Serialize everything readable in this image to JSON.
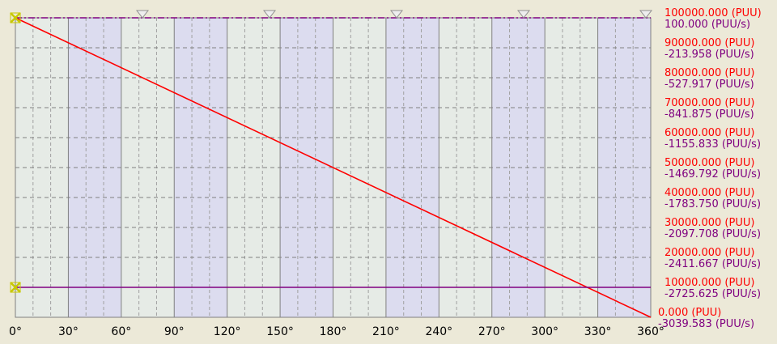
{
  "chart_data": {
    "type": "line",
    "title": "",
    "xlabel": "",
    "ylabel": "",
    "x_unit_symbol": "°",
    "xlim": [
      0,
      360
    ],
    "x_ticks": [
      "0°",
      "30°",
      "60°",
      "90°",
      "120°",
      "150°",
      "180°",
      "210°",
      "240°",
      "270°",
      "300°",
      "330°",
      "360°"
    ],
    "x_tick_values": [
      0,
      30,
      60,
      90,
      120,
      150,
      180,
      210,
      240,
      270,
      300,
      330,
      360
    ],
    "position_axis": {
      "unit": "(PUU)",
      "ylim": [
        0,
        100000
      ],
      "tick_labels": [
        "100000.000",
        "90000.000",
        "80000.000",
        "70000.000",
        "60000.000",
        "50000.000",
        "40000.000",
        "30000.000",
        "20000.000",
        "10000.000",
        "0.000"
      ],
      "tick_values": [
        100000,
        90000,
        80000,
        70000,
        60000,
        50000,
        40000,
        30000,
        20000,
        10000,
        0
      ]
    },
    "velocity_axis": {
      "unit": "(PUU/s)",
      "ylim": [
        -3039.583,
        100
      ],
      "tick_labels": [
        "100.000",
        "-213.958",
        "-527.917",
        "-841.875",
        "-1155.833",
        "-1469.792",
        "-1783.750",
        "-2097.708",
        "-2411.667",
        "-2725.625",
        "-3039.583"
      ],
      "tick_values": [
        100,
        -213.958,
        -527.917,
        -841.875,
        -1155.833,
        -1469.792,
        -1783.75,
        -2097.708,
        -2411.667,
        -2725.625,
        -3039.583
      ]
    },
    "series": [
      {
        "axis": "position",
        "color": "#ff0000",
        "x": [
          0,
          360
        ],
        "y": [
          100000,
          0
        ]
      },
      {
        "axis": "velocity",
        "color": "#800080",
        "x": [
          0,
          360
        ],
        "y": [
          -2725.625,
          -2725.625
        ]
      }
    ],
    "top_reference": {
      "axis": "position",
      "value": 100000,
      "color": "#800080",
      "style": "dash-dot"
    },
    "markers": [
      {
        "type": "cross",
        "x": 0,
        "axis": "position",
        "value": 100000,
        "color": "#c8c800"
      },
      {
        "type": "cross",
        "x": 0,
        "axis": "velocity",
        "value": -2725.625,
        "color": "#c8c800"
      }
    ],
    "top_triangle_markers_x": [
      72,
      144,
      216,
      288,
      360
    ],
    "grid": true,
    "colors": {
      "plot_bg_light": "#e6ebe6",
      "plot_bg_band": "#dcdcef",
      "major_grid": "#808080",
      "minor_grid": "#a0a0a0",
      "position": "#ff0000",
      "velocity": "#800080"
    }
  }
}
